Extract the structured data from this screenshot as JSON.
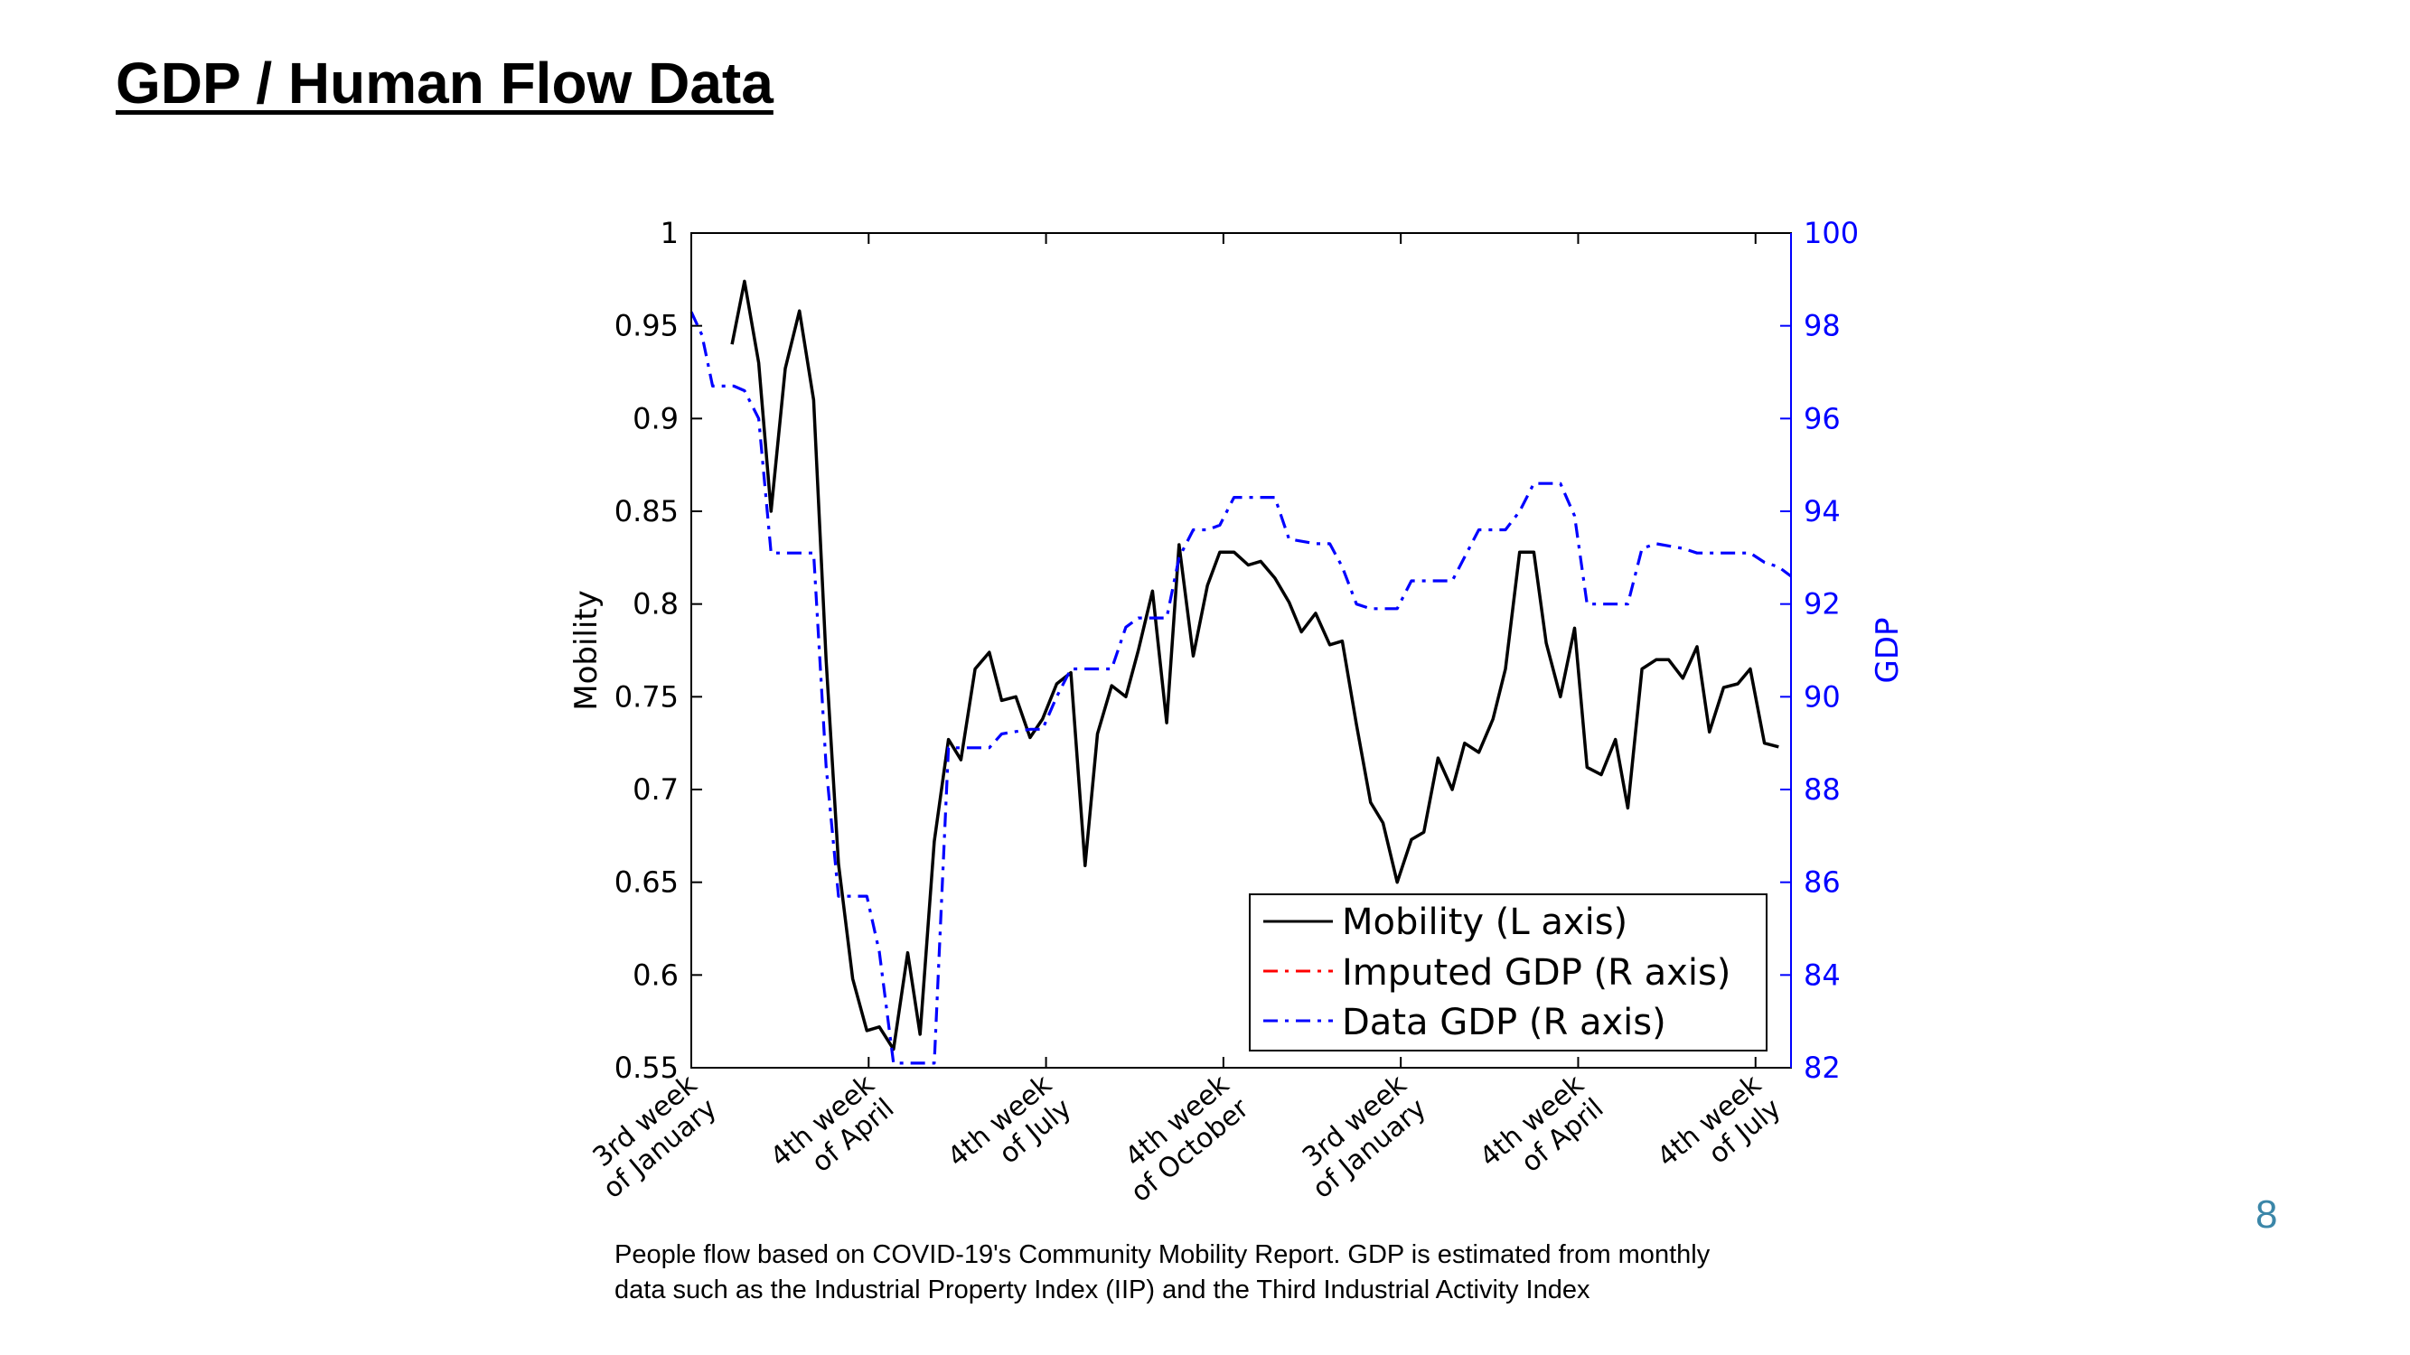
{
  "slide": {
    "title": "GDP / Human Flow Data",
    "page_number": "8",
    "caption_line1": "People flow based on COVID-19's Community Mobility Report. GDP is estimated from monthly",
    "caption_line2": "data such as the Industrial Property Index (IIP) and the Third Industrial Activity Index"
  },
  "colors": {
    "mobility": "#000000",
    "imputed_gdp": "#ff0000",
    "data_gdp": "#0000ff",
    "right_axis": "#0000ff"
  },
  "chart_data": {
    "type": "line",
    "ylabel_left": "Mobility",
    "ylabel_right": "GDP",
    "ylim_left": [
      0.55,
      1
    ],
    "ylim_right": [
      82,
      100
    ],
    "xlim": [
      0,
      62
    ],
    "yticks_left": [
      "0.55",
      "0.6",
      "0.65",
      "0.7",
      "0.75",
      "0.8",
      "0.85",
      "0.9",
      "0.95",
      "1"
    ],
    "yticks_right": [
      "82",
      "84",
      "86",
      "88",
      "90",
      "92",
      "94",
      "96",
      "98",
      "100"
    ],
    "x_ticks": [
      {
        "x": 0,
        "line1": "3rd week",
        "line2": "of January"
      },
      {
        "x": 10,
        "line1": "4th week",
        "line2": "of April"
      },
      {
        "x": 20,
        "line1": "4th week",
        "line2": "of July"
      },
      {
        "x": 30,
        "line1": "4th week",
        "line2": "of October"
      },
      {
        "x": 40,
        "line1": "3rd week",
        "line2": "of January"
      },
      {
        "x": 50,
        "line1": "4th week",
        "line2": "of April"
      },
      {
        "x": 60,
        "line1": "4th week",
        "line2": "of July"
      }
    ],
    "legend_position": "bottom-right",
    "legend": [
      "Mobility (L axis)",
      "Imputed GDP (R axis)",
      "Data GDP (R axis)"
    ],
    "series": [
      {
        "name": "Mobility (L axis)",
        "axis": "left",
        "style": "solid",
        "points": [
          [
            2.3,
            0.94
          ],
          [
            3.0,
            0.974
          ],
          [
            3.8,
            0.93
          ],
          [
            4.5,
            0.85
          ],
          [
            5.3,
            0.927
          ],
          [
            6.1,
            0.958
          ],
          [
            6.9,
            0.91
          ],
          [
            7.6,
            0.77
          ],
          [
            8.3,
            0.66
          ],
          [
            9.1,
            0.598
          ],
          [
            9.9,
            0.57
          ],
          [
            10.6,
            0.572
          ],
          [
            11.4,
            0.56
          ],
          [
            12.2,
            0.612
          ],
          [
            12.9,
            0.568
          ],
          [
            13.7,
            0.672
          ],
          [
            14.5,
            0.727
          ],
          [
            15.2,
            0.716
          ],
          [
            16.0,
            0.765
          ],
          [
            16.8,
            0.774
          ],
          [
            17.5,
            0.748
          ],
          [
            18.3,
            0.75
          ],
          [
            19.1,
            0.728
          ],
          [
            19.8,
            0.738
          ],
          [
            20.6,
            0.757
          ],
          [
            21.4,
            0.763
          ],
          [
            22.2,
            0.659
          ],
          [
            22.9,
            0.73
          ],
          [
            23.7,
            0.756
          ],
          [
            24.5,
            0.75
          ],
          [
            25.2,
            0.775
          ],
          [
            26.0,
            0.807
          ],
          [
            26.8,
            0.736
          ],
          [
            27.5,
            0.832
          ],
          [
            28.3,
            0.772
          ],
          [
            29.1,
            0.81
          ],
          [
            29.8,
            0.828
          ],
          [
            30.6,
            0.828
          ],
          [
            31.4,
            0.821
          ],
          [
            32.1,
            0.823
          ],
          [
            32.9,
            0.814
          ],
          [
            33.7,
            0.801
          ],
          [
            34.4,
            0.785
          ],
          [
            35.2,
            0.795
          ],
          [
            36.0,
            0.778
          ],
          [
            36.7,
            0.78
          ],
          [
            37.5,
            0.735
          ],
          [
            38.3,
            0.693
          ],
          [
            39.0,
            0.682
          ],
          [
            39.8,
            0.65
          ],
          [
            40.6,
            0.673
          ],
          [
            41.3,
            0.677
          ],
          [
            42.1,
            0.717
          ],
          [
            42.9,
            0.7
          ],
          [
            43.6,
            0.725
          ],
          [
            44.4,
            0.72
          ],
          [
            45.2,
            0.738
          ],
          [
            45.9,
            0.765
          ],
          [
            46.7,
            0.828
          ],
          [
            47.5,
            0.828
          ],
          [
            48.2,
            0.779
          ],
          [
            49.0,
            0.75
          ],
          [
            49.8,
            0.787
          ],
          [
            50.5,
            0.712
          ],
          [
            51.3,
            0.708
          ],
          [
            52.1,
            0.727
          ],
          [
            52.8,
            0.69
          ],
          [
            53.6,
            0.765
          ],
          [
            54.4,
            0.77
          ],
          [
            55.1,
            0.77
          ],
          [
            55.9,
            0.76
          ],
          [
            56.7,
            0.777
          ],
          [
            57.4,
            0.731
          ],
          [
            58.2,
            0.755
          ],
          [
            59.0,
            0.757
          ],
          [
            59.7,
            0.765
          ],
          [
            60.5,
            0.725
          ],
          [
            61.3,
            0.723
          ]
        ]
      },
      {
        "name": "Imputed GDP (R axis)",
        "axis": "right",
        "style": "dashdot",
        "points": []
      },
      {
        "name": "Data GDP (R axis)",
        "axis": "right",
        "style": "dashdot",
        "points": [
          [
            0,
            98.3
          ],
          [
            0.6,
            97.8
          ],
          [
            1.2,
            96.7
          ],
          [
            2.4,
            96.7
          ],
          [
            3.0,
            96.6
          ],
          [
            3.8,
            96.0
          ],
          [
            4.5,
            93.1
          ],
          [
            6.9,
            93.1
          ],
          [
            7.6,
            88.5
          ],
          [
            8.3,
            85.7
          ],
          [
            9.9,
            85.7
          ],
          [
            10.6,
            84.5
          ],
          [
            11.4,
            82.1
          ],
          [
            13.7,
            82.1
          ],
          [
            14.5,
            88.9
          ],
          [
            15.2,
            88.9
          ],
          [
            16.8,
            88.9
          ],
          [
            17.5,
            89.2
          ],
          [
            19.1,
            89.3
          ],
          [
            19.8,
            89.3
          ],
          [
            20.6,
            90.0
          ],
          [
            21.4,
            90.6
          ],
          [
            22.9,
            90.6
          ],
          [
            23.7,
            90.6
          ],
          [
            24.5,
            91.5
          ],
          [
            25.2,
            91.7
          ],
          [
            26.0,
            91.7
          ],
          [
            26.8,
            91.7
          ],
          [
            27.5,
            93.0
          ],
          [
            28.3,
            93.6
          ],
          [
            29.1,
            93.6
          ],
          [
            29.8,
            93.7
          ],
          [
            30.6,
            94.3
          ],
          [
            32.1,
            94.3
          ],
          [
            32.9,
            94.3
          ],
          [
            33.7,
            93.4
          ],
          [
            35.2,
            93.3
          ],
          [
            36.0,
            93.3
          ],
          [
            36.7,
            92.8
          ],
          [
            37.5,
            92.0
          ],
          [
            38.3,
            91.9
          ],
          [
            39.8,
            91.9
          ],
          [
            40.6,
            92.5
          ],
          [
            42.9,
            92.5
          ],
          [
            44.4,
            93.6
          ],
          [
            45.9,
            93.6
          ],
          [
            46.7,
            94.0
          ],
          [
            47.5,
            94.6
          ],
          [
            48.2,
            94.6
          ],
          [
            49.0,
            94.6
          ],
          [
            49.8,
            93.9
          ],
          [
            50.5,
            92.0
          ],
          [
            52.1,
            92.0
          ],
          [
            52.8,
            92.0
          ],
          [
            53.6,
            93.2
          ],
          [
            54.4,
            93.3
          ],
          [
            55.9,
            93.2
          ],
          [
            56.7,
            93.1
          ],
          [
            57.4,
            93.1
          ],
          [
            59.0,
            93.1
          ],
          [
            59.7,
            93.1
          ],
          [
            60.5,
            92.9
          ],
          [
            61.3,
            92.8
          ],
          [
            62,
            92.6
          ]
        ]
      }
    ]
  }
}
